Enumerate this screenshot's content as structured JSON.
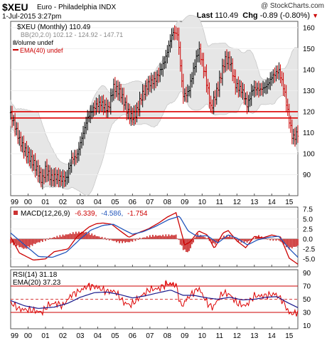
{
  "header": {
    "symbol": "$XEU",
    "description": "Euro - Philadelphia INDX",
    "brand": "@ StockCharts.com",
    "date": "1-Jul-2015 3:27pm",
    "last_label": "Last",
    "last_value": "110.49",
    "chg_label": "Chg",
    "chg_value": "-0.89 (-0.80%)",
    "chg_arrow": "▼"
  },
  "legend_main": [
    {
      "text": "$XEU (Monthly) 110.49",
      "color": "#000000"
    },
    {
      "text": "BB(20,2.0) 102.12 - 124.92 - 147.71",
      "color": "#888888"
    },
    {
      "text": "Volume undef",
      "color": "#000000"
    },
    {
      "text": "EMA(40) undef",
      "color": "#cc0000"
    }
  ],
  "legend_macd": {
    "label": "MACD(12,26,9)",
    "v1": "-6.339,",
    "v2": "-4.586,",
    "v3": "-1.754"
  },
  "legend_rsi": [
    {
      "text": "RSI(14) 31.18",
      "color": "#000000"
    },
    {
      "text": "EMA(20) 37.23",
      "color": "#000000"
    }
  ],
  "colors": {
    "price_up": "#000000",
    "price_down": "#cc0000",
    "band_fill": "#e6e6e6",
    "band_line": "#c8c8c8",
    "support_line": "#dd0000",
    "macd_line": "#cc0000",
    "signal_line": "#2255bb",
    "histogram": "#cc3333",
    "rsi_line": "#dd0000",
    "rsi_ema": "#1a1a8c"
  },
  "x_axis_ticks": [
    "99",
    "00",
    "01",
    "02",
    "03",
    "04",
    "05",
    "06",
    "07",
    "08",
    "09",
    "10",
    "11",
    "12",
    "13",
    "14",
    "15"
  ],
  "chart_data": [
    {
      "type": "candlestick",
      "title": "$XEU (Monthly) 110.49",
      "x": [
        "1999",
        "2000",
        "2001",
        "2002",
        "2003",
        "2004",
        "2005",
        "2006",
        "2007",
        "2008",
        "2009",
        "2010",
        "2011",
        "2012",
        "2013",
        "2014",
        "2015"
      ],
      "ylim": [
        80,
        163
      ],
      "y_ticks": [
        90,
        100,
        110,
        120,
        130,
        140,
        150,
        160
      ],
      "series": [
        {
          "name": "$XEU (Monthly)",
          "anchors": [
            [
              1999.0,
              118
            ],
            [
              1999.5,
              106
            ],
            [
              2000.0,
              100
            ],
            [
              2000.3,
              96
            ],
            [
              2000.8,
              86
            ],
            [
              2001.0,
              92
            ],
            [
              2001.3,
              89
            ],
            [
              2001.6,
              90
            ],
            [
              2001.9,
              88
            ],
            [
              2002.2,
              87
            ],
            [
              2002.5,
              97
            ],
            [
              2002.8,
              99
            ],
            [
              2003.0,
              106
            ],
            [
              2003.4,
              117
            ],
            [
              2003.9,
              122
            ],
            [
              2004.2,
              124
            ],
            [
              2004.6,
              122
            ],
            [
              2004.9,
              132
            ],
            [
              2005.3,
              128
            ],
            [
              2005.7,
              120
            ],
            [
              2005.9,
              118
            ],
            [
              2006.2,
              120
            ],
            [
              2006.5,
              127
            ],
            [
              2006.9,
              132
            ],
            [
              2007.3,
              135
            ],
            [
              2007.9,
              146
            ],
            [
              2008.3,
              157
            ],
            [
              2008.6,
              156
            ],
            [
              2008.9,
              128
            ],
            [
              2009.2,
              130
            ],
            [
              2009.5,
              140
            ],
            [
              2009.8,
              149
            ],
            [
              2010.2,
              136
            ],
            [
              2010.5,
              122
            ],
            [
              2010.9,
              132
            ],
            [
              2011.3,
              144
            ],
            [
              2011.6,
              143
            ],
            [
              2011.9,
              133
            ],
            [
              2012.3,
              131
            ],
            [
              2012.6,
              123
            ],
            [
              2012.9,
              130
            ],
            [
              2013.3,
              130
            ],
            [
              2013.7,
              133
            ],
            [
              2014.0,
              137
            ],
            [
              2014.4,
              139
            ],
            [
              2014.7,
              130
            ],
            [
              2015.0,
              116
            ],
            [
              2015.2,
              108
            ],
            [
              2015.5,
              110.49
            ]
          ]
        }
      ],
      "bollinger": {
        "label": "BB(20,2.0)",
        "lower": 102.12,
        "middle": 124.92,
        "upper": 147.71
      },
      "horizontal_lines": [
        117,
        120
      ]
    },
    {
      "type": "line",
      "title": "MACD(12,26,9)",
      "ylim": [
        -7,
        8
      ],
      "y_ticks": [
        7.5,
        5.0,
        2.5,
        0.0,
        -2.5,
        -5.0
      ],
      "series": [
        {
          "name": "MACD",
          "anchors": [
            [
              1999.0,
              0.5
            ],
            [
              1999.5,
              -3.5
            ],
            [
              2000.3,
              -5.3
            ],
            [
              2001.0,
              -5.0
            ],
            [
              2001.5,
              -3.2
            ],
            [
              2002.3,
              -2.5
            ],
            [
              2002.8,
              0.5
            ],
            [
              2003.5,
              3.0
            ],
            [
              2003.9,
              3.8
            ],
            [
              2004.3,
              4.0
            ],
            [
              2004.8,
              3.7
            ],
            [
              2005.3,
              2.0
            ],
            [
              2005.8,
              0.4
            ],
            [
              2006.3,
              1.5
            ],
            [
              2006.9,
              2.5
            ],
            [
              2007.5,
              4.0
            ],
            [
              2008.0,
              5.5
            ],
            [
              2008.5,
              6.6
            ],
            [
              2009.0,
              -1.5
            ],
            [
              2009.3,
              -0.8
            ],
            [
              2009.8,
              2.0
            ],
            [
              2010.3,
              1.0
            ],
            [
              2010.7,
              -2.4
            ],
            [
              2011.2,
              1.5
            ],
            [
              2011.5,
              2.1
            ],
            [
              2012.0,
              -0.5
            ],
            [
              2012.5,
              -2.2
            ],
            [
              2013.0,
              0.6
            ],
            [
              2013.5,
              0.3
            ],
            [
              2014.0,
              1.0
            ],
            [
              2014.5,
              0.5
            ],
            [
              2015.0,
              -4.8
            ],
            [
              2015.5,
              -6.339
            ]
          ]
        },
        {
          "name": "Signal",
          "anchors": [
            [
              1999.0,
              1.5
            ],
            [
              1999.8,
              -1.5
            ],
            [
              2000.6,
              -4.4
            ],
            [
              2001.4,
              -4.6
            ],
            [
              2002.2,
              -3.3
            ],
            [
              2003.0,
              0.0
            ],
            [
              2003.6,
              2.2
            ],
            [
              2004.3,
              3.4
            ],
            [
              2004.9,
              3.7
            ],
            [
              2005.5,
              2.3
            ],
            [
              2006.0,
              1.2
            ],
            [
              2006.6,
              1.8
            ],
            [
              2007.3,
              3.1
            ],
            [
              2008.1,
              4.9
            ],
            [
              2008.7,
              5.7
            ],
            [
              2009.2,
              2.0
            ],
            [
              2009.7,
              0.7
            ],
            [
              2010.3,
              0.8
            ],
            [
              2010.9,
              -1.0
            ],
            [
              2011.5,
              1.0
            ],
            [
              2012.0,
              0.2
            ],
            [
              2012.6,
              -1.5
            ],
            [
              2013.2,
              -0.2
            ],
            [
              2013.8,
              0.4
            ],
            [
              2014.4,
              0.7
            ],
            [
              2015.0,
              -2.4
            ],
            [
              2015.5,
              -4.586
            ]
          ]
        },
        {
          "name": "Histogram",
          "anchors": [
            [
              1999.0,
              -1.0
            ],
            [
              1999.8,
              -2.5
            ],
            [
              2000.5,
              -1.0
            ],
            [
              2001.3,
              0.2
            ],
            [
              2001.9,
              0.8
            ],
            [
              2002.6,
              1.5
            ],
            [
              2003.2,
              1.8
            ],
            [
              2003.9,
              0.8
            ],
            [
              2004.5,
              0.0
            ],
            [
              2005.2,
              -0.8
            ],
            [
              2005.8,
              -0.8
            ],
            [
              2006.4,
              0.1
            ],
            [
              2007.1,
              0.8
            ],
            [
              2007.9,
              0.9
            ],
            [
              2008.5,
              1.0
            ],
            [
              2008.9,
              -2.5
            ],
            [
              2009.2,
              -3.5
            ],
            [
              2009.7,
              1.2
            ],
            [
              2010.3,
              0.2
            ],
            [
              2010.7,
              -1.4
            ],
            [
              2011.2,
              0.6
            ],
            [
              2011.6,
              0.8
            ],
            [
              2012.1,
              -0.6
            ],
            [
              2012.6,
              -0.8
            ],
            [
              2013.2,
              0.8
            ],
            [
              2013.8,
              -0.1
            ],
            [
              2014.4,
              -0.3
            ],
            [
              2015.0,
              -2.4
            ],
            [
              2015.5,
              -1.754
            ]
          ]
        }
      ]
    },
    {
      "type": "line",
      "title": "RSI(14) 31.18",
      "ylim": [
        5,
        95
      ],
      "y_ticks": [
        90,
        70,
        50,
        30,
        10
      ],
      "reference_lines": [
        70,
        50,
        30
      ],
      "series": [
        {
          "name": "RSI(14)",
          "anchors": [
            [
              1999.0,
              45
            ],
            [
              1999.5,
              35
            ],
            [
              2000.3,
              33
            ],
            [
              2000.8,
              30
            ],
            [
              2001.2,
              42
            ],
            [
              2001.6,
              44
            ],
            [
              2002.0,
              40
            ],
            [
              2002.5,
              57
            ],
            [
              2003.0,
              63
            ],
            [
              2003.4,
              70
            ],
            [
              2003.9,
              69
            ],
            [
              2004.5,
              62
            ],
            [
              2005.0,
              62
            ],
            [
              2005.5,
              45
            ],
            [
              2005.9,
              41
            ],
            [
              2006.5,
              55
            ],
            [
              2007.0,
              65
            ],
            [
              2007.5,
              66
            ],
            [
              2008.0,
              74
            ],
            [
              2008.5,
              72
            ],
            [
              2008.8,
              38
            ],
            [
              2009.2,
              53
            ],
            [
              2009.8,
              67
            ],
            [
              2010.3,
              44
            ],
            [
              2010.6,
              37
            ],
            [
              2011.2,
              60
            ],
            [
              2011.6,
              57
            ],
            [
              2012.0,
              44
            ],
            [
              2012.5,
              40
            ],
            [
              2013.0,
              55
            ],
            [
              2013.5,
              55
            ],
            [
              2014.2,
              58
            ],
            [
              2014.6,
              49
            ],
            [
              2015.0,
              29
            ],
            [
              2015.3,
              28
            ],
            [
              2015.5,
              31.18
            ]
          ]
        },
        {
          "name": "EMA(20)",
          "anchors": [
            [
              1999.0,
              48
            ],
            [
              1999.8,
              40
            ],
            [
              2000.6,
              36
            ],
            [
              2001.5,
              38
            ],
            [
              2002.3,
              44
            ],
            [
              2003.0,
              53
            ],
            [
              2003.8,
              60
            ],
            [
              2004.5,
              61
            ],
            [
              2005.3,
              57
            ],
            [
              2006.0,
              52
            ],
            [
              2006.7,
              55
            ],
            [
              2007.5,
              60
            ],
            [
              2008.2,
              64
            ],
            [
              2008.9,
              56
            ],
            [
              2009.5,
              56
            ],
            [
              2010.3,
              52
            ],
            [
              2010.9,
              50
            ],
            [
              2011.6,
              53
            ],
            [
              2012.3,
              49
            ],
            [
              2013.0,
              50
            ],
            [
              2013.7,
              53
            ],
            [
              2014.3,
              54
            ],
            [
              2014.9,
              45
            ],
            [
              2015.5,
              37.23
            ]
          ]
        }
      ]
    }
  ]
}
